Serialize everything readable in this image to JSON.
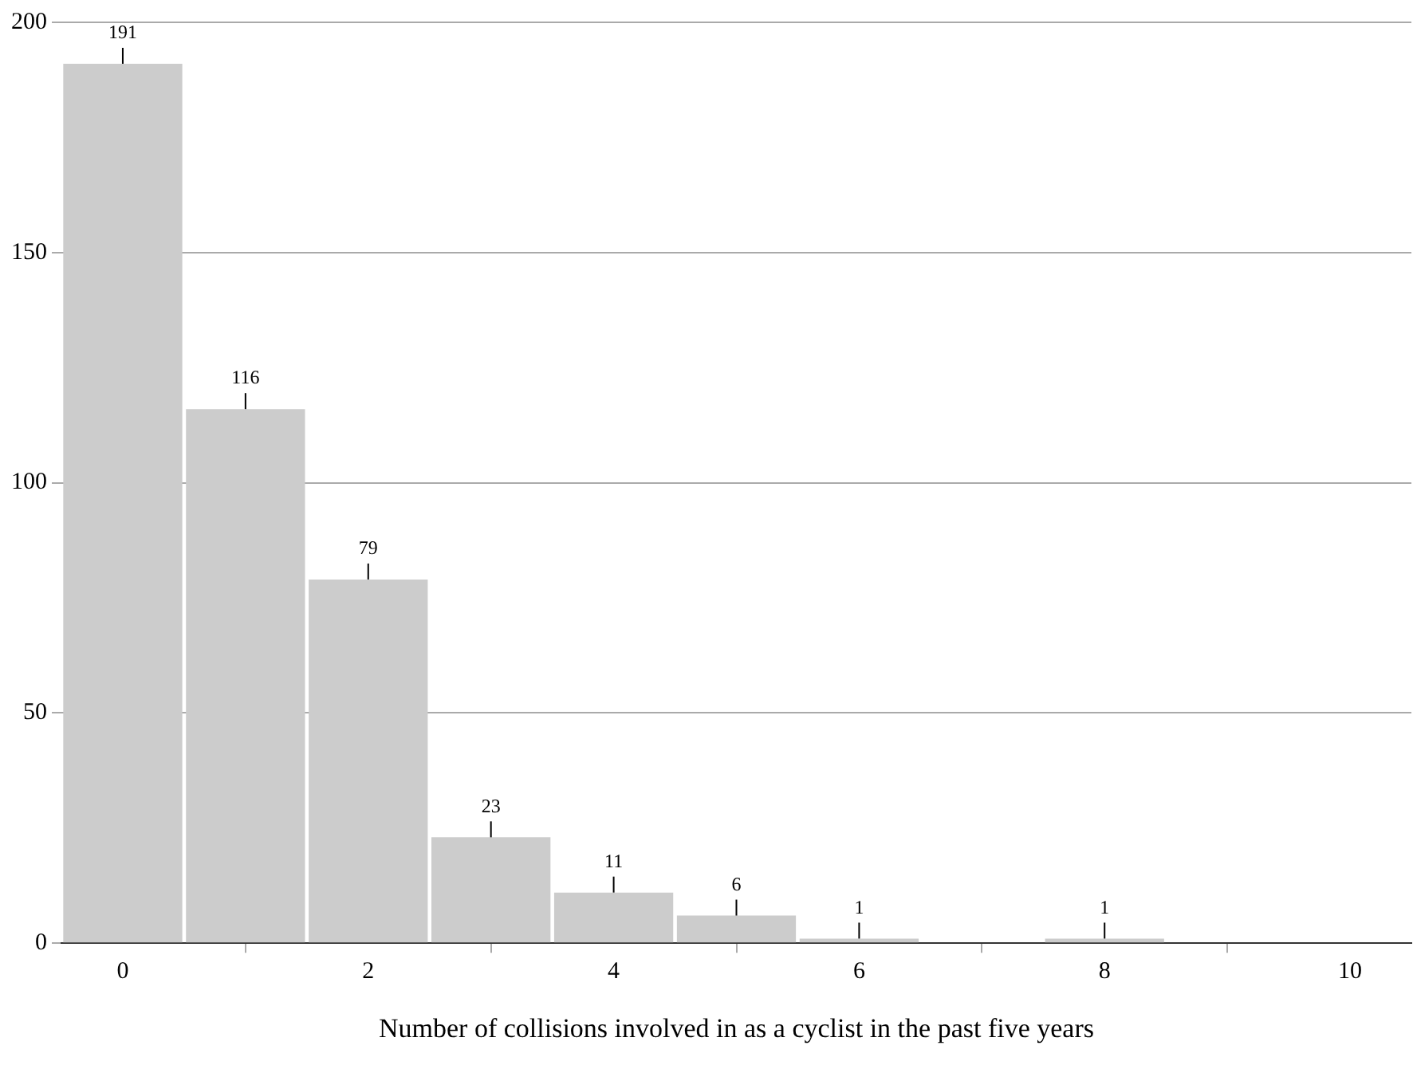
{
  "chart_data": {
    "type": "histogram",
    "xlabel": "Number of collisions involved in as a cyclist in the past five years",
    "bins": [
      -0.5,
      0.5,
      1.5,
      2.5,
      3.5,
      4.5,
      5.5,
      6.5,
      7.5,
      8.5,
      9.5,
      10.5
    ],
    "values": [
      191,
      116,
      79,
      23,
      11,
      6,
      1,
      0,
      1,
      0,
      0
    ],
    "value_labels": [
      "191",
      "116",
      "79",
      "23",
      "11",
      "6",
      "1",
      null,
      "1",
      null,
      null
    ],
    "color": "#cccccc",
    "xlim": [
      -0.5,
      10.5
    ],
    "xticks": [
      0,
      2,
      4,
      6,
      8,
      10
    ],
    "ylim": [
      0,
      200
    ],
    "yticks": [
      0,
      50,
      100,
      150,
      200
    ],
    "grid": "y",
    "legend": false
  }
}
